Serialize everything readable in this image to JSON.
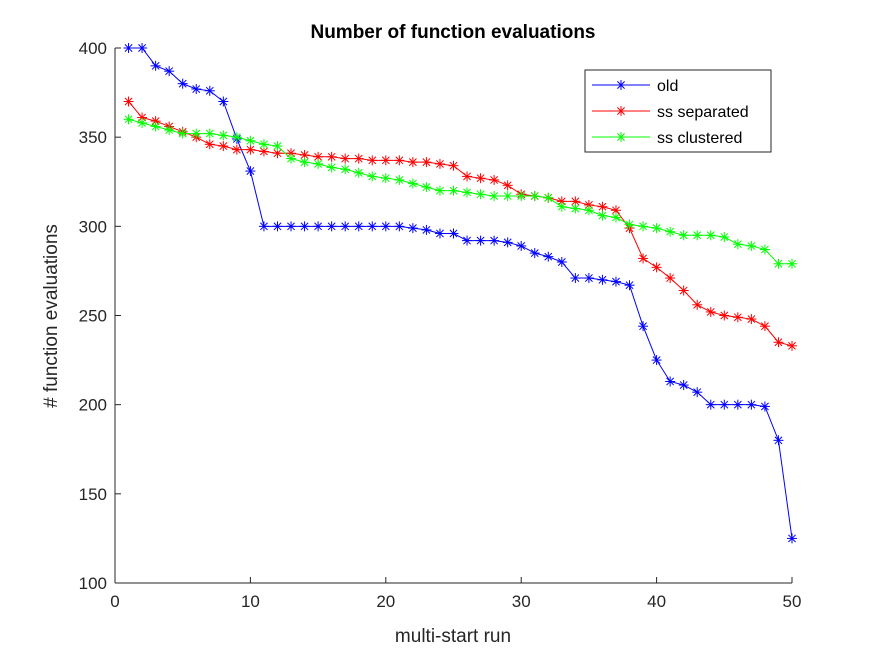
{
  "chart_data": {
    "type": "line",
    "title": "Number of function evaluations",
    "xlabel": "multi-start run",
    "ylabel": "# function evaluations",
    "xlim": [
      0,
      50
    ],
    "ylim": [
      100,
      400
    ],
    "xticks": [
      0,
      10,
      20,
      30,
      40,
      50
    ],
    "yticks": [
      100,
      150,
      200,
      250,
      300,
      350,
      400
    ],
    "grid": false,
    "legend_position": "top-right",
    "marker": "asterisk",
    "x": [
      1,
      2,
      3,
      4,
      5,
      6,
      7,
      8,
      9,
      10,
      11,
      12,
      13,
      14,
      15,
      16,
      17,
      18,
      19,
      20,
      21,
      22,
      23,
      24,
      25,
      26,
      27,
      28,
      29,
      30,
      31,
      32,
      33,
      34,
      35,
      36,
      37,
      38,
      39,
      40,
      41,
      42,
      43,
      44,
      45,
      46,
      47,
      48,
      49,
      50
    ],
    "series": [
      {
        "name": "old",
        "color": "#0000ff",
        "values": [
          400,
          400,
          390,
          387,
          380,
          377,
          376,
          370,
          349,
          331,
          300,
          300,
          300,
          300,
          300,
          300,
          300,
          300,
          300,
          300,
          300,
          299,
          298,
          296,
          296,
          292,
          292,
          292,
          291,
          289,
          285,
          283,
          280,
          271,
          271,
          270,
          269,
          267,
          244,
          225,
          213,
          211,
          207,
          200,
          200,
          200,
          200,
          199,
          180,
          125
        ]
      },
      {
        "name": "ss separated",
        "color": "#ff0000",
        "values": [
          370,
          361,
          359,
          356,
          353,
          350,
          346,
          345,
          343,
          343,
          342,
          341,
          341,
          340,
          339,
          339,
          338,
          338,
          337,
          337,
          337,
          336,
          336,
          335,
          334,
          328,
          327,
          326,
          323,
          318,
          317,
          316,
          314,
          314,
          312,
          311,
          309,
          299,
          282,
          277,
          271,
          264,
          256,
          252,
          250,
          249,
          248,
          244,
          235,
          233
        ]
      },
      {
        "name": "ss clustered",
        "color": "#00ff00",
        "values": [
          360,
          358,
          356,
          354,
          352,
          352,
          352,
          351,
          350,
          348,
          346,
          345,
          338,
          336,
          335,
          333,
          332,
          330,
          328,
          327,
          326,
          324,
          322,
          320,
          320,
          319,
          318,
          317,
          317,
          317,
          317,
          316,
          311,
          310,
          309,
          306,
          305,
          301,
          300,
          299,
          297,
          295,
          295,
          295,
          294,
          290,
          289,
          287,
          279,
          279
        ]
      }
    ]
  }
}
